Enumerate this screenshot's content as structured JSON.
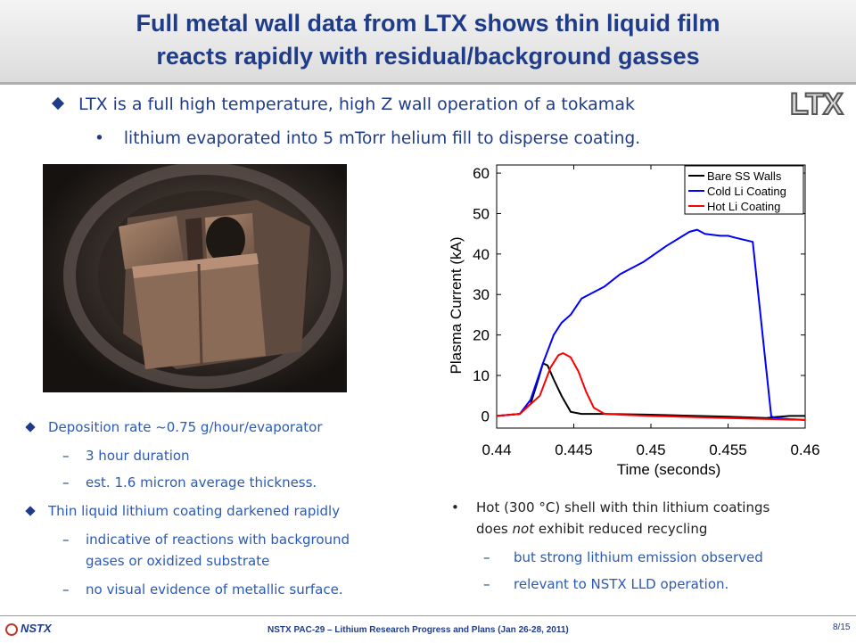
{
  "title": {
    "line1": "Full metal wall data from LTX shows thin liquid film",
    "line2": "reacts rapidly with residual/background gasses"
  },
  "logo_text": "LTX",
  "bullets": {
    "main": "LTX is a full high temperature, high Z wall operation of a tokamak",
    "sub": "lithium evaporated into 5 mTorr helium fill to disperse coating."
  },
  "photo": {
    "description_icon": "vacuum-vessel-photo"
  },
  "left_list": {
    "item1": "Deposition rate ~0.75 g/hour/evaporator",
    "item1_sub1": "3 hour duration",
    "item1_sub2": "est. 1.6 micron average thickness.",
    "item2": "Thin liquid lithium coating darkened rapidly",
    "item2_sub1a": "indicative of reactions with background",
    "item2_sub1b": "gases or oxidized substrate",
    "item2_sub2": "no visual evidence of metallic surface."
  },
  "right_list": {
    "main_a": "Hot (300 °C) shell with thin lithium coatings",
    "main_b_pre": "does ",
    "main_b_em": "not",
    "main_b_post": " exhibit reduced recycling",
    "sub1": "but strong lithium emission observed",
    "sub2": "relevant to NSTX LLD operation."
  },
  "footer": {
    "logo": "NSTX",
    "text": "NSTX PAC-29 – Lithium Research Progress and Plans (Jan 26-28, 2011)",
    "page": "8/15"
  },
  "colors": {
    "title": "#1f3c8a",
    "accent_blue": "#2a5ab8",
    "bare": "#000000",
    "cold": "#0000ff",
    "hot": "#ff0000"
  },
  "chart_data": {
    "type": "line",
    "xlabel": "Time (seconds)",
    "ylabel": "Plasma Current (kA)",
    "xlim": [
      0.44,
      0.46
    ],
    "ylim": [
      -3,
      62
    ],
    "xticks": [
      0.44,
      0.445,
      0.45,
      0.455,
      0.46
    ],
    "xtick_labels": [
      "0.44",
      "0.445",
      "0.45",
      "0.455",
      "0.46"
    ],
    "yticks": [
      0,
      10,
      20,
      30,
      40,
      50,
      60
    ],
    "legend_position": "top-right",
    "series": [
      {
        "name": "Bare SS Walls",
        "color": "#000000",
        "x": [
          0.44,
          0.4415,
          0.4422,
          0.4427,
          0.443,
          0.4433,
          0.4437,
          0.4442,
          0.4448,
          0.4455,
          0.447,
          0.45,
          0.455,
          0.4575,
          0.458,
          0.459,
          0.46
        ],
        "y": [
          0,
          0.5,
          3,
          9,
          13,
          12.5,
          9,
          5,
          1,
          0.5,
          0.5,
          0.3,
          -0.2,
          -0.5,
          -0.3,
          0,
          0
        ]
      },
      {
        "name": "Cold Li Coating",
        "color": "#0000ff",
        "x": [
          0.44,
          0.4415,
          0.4422,
          0.443,
          0.4437,
          0.4442,
          0.4448,
          0.4455,
          0.446,
          0.447,
          0.448,
          0.4495,
          0.451,
          0.4525,
          0.453,
          0.4535,
          0.4545,
          0.455,
          0.4555,
          0.4566,
          0.4578,
          0.458,
          0.459,
          0.46
        ],
        "y": [
          0,
          0.5,
          4,
          13,
          20,
          23,
          25,
          29,
          30,
          32,
          35,
          38,
          42,
          45.5,
          46,
          45,
          44.5,
          44.5,
          44,
          43,
          0,
          -0.5,
          -0.8,
          -1
        ]
      },
      {
        "name": "Hot Li Coating",
        "color": "#ff0000",
        "x": [
          0.44,
          0.4415,
          0.4428,
          0.4435,
          0.444,
          0.4443,
          0.4448,
          0.4453,
          0.4458,
          0.4463,
          0.447,
          0.448,
          0.45,
          0.455,
          0.46
        ],
        "y": [
          0,
          0.5,
          5,
          12,
          15,
          15.5,
          14.5,
          11,
          6,
          2,
          0.5,
          0.3,
          0,
          -0.5,
          -1
        ]
      }
    ]
  }
}
